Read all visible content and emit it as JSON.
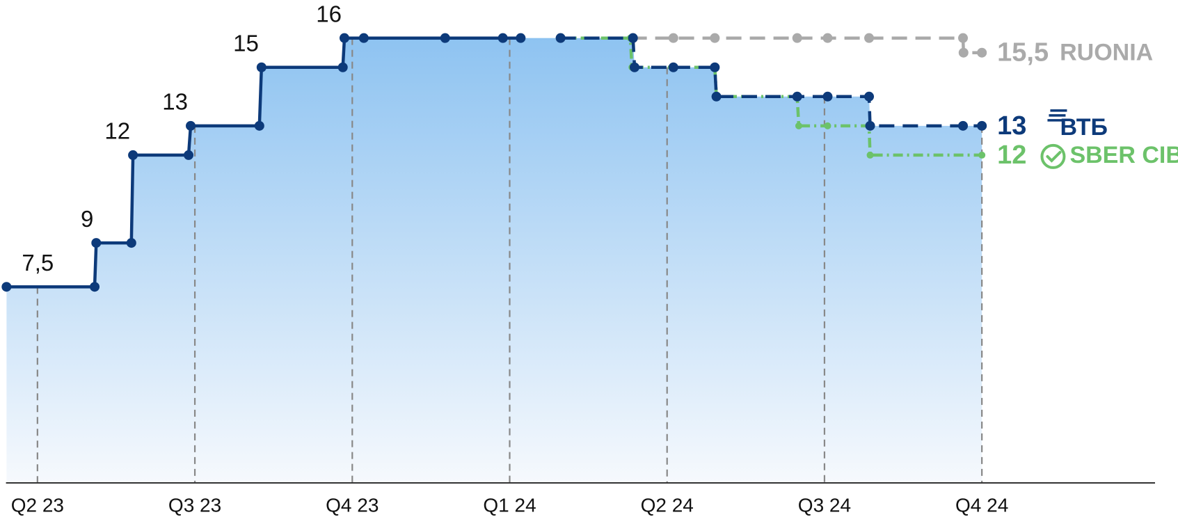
{
  "chart_data": {
    "type": "line",
    "xlim": [
      2.4,
      24.3
    ],
    "ylim": [
      0.8,
      17.3
    ],
    "xticks": [
      {
        "value": 3,
        "label": "Q2 23"
      },
      {
        "value": 6,
        "label": "Q3 23"
      },
      {
        "value": 9,
        "label": "Q4 23"
      },
      {
        "value": 12,
        "label": "Q1 24"
      },
      {
        "value": 15,
        "label": "Q2 24"
      },
      {
        "value": 18,
        "label": "Q3 24"
      },
      {
        "value": 21,
        "label": "Q4 24"
      }
    ],
    "grid": true,
    "series": [
      {
        "color": "#0d3a7a",
        "style": "solid",
        "x": [
          2.41,
          4.09,
          4.12,
          4.79,
          4.82,
          5.88,
          5.92,
          7.23,
          7.27,
          8.82,
          8.85,
          9.22,
          10.77,
          11.87,
          12.21
        ],
        "values": [
          7.5,
          7.5,
          9,
          9,
          12,
          12,
          13,
          13,
          15,
          15,
          16,
          16,
          16,
          16,
          16
        ],
        "value_labels": [
          "7,5",
          null,
          "9",
          null,
          "12",
          null,
          "13",
          null,
          "15",
          null,
          "16",
          null,
          null,
          null,
          null
        ]
      },
      {
        "name": "RUONIA",
        "color": "#aaaaaa",
        "style": "dashed",
        "x": [
          12.97,
          14.35,
          15.12,
          15.91,
          17.48,
          18.06,
          18.85,
          20.64,
          20.65,
          21.0
        ],
        "values": [
          16,
          16,
          16,
          16,
          16,
          16,
          16,
          16,
          15.5,
          15.5
        ],
        "value_labels": [
          null,
          null,
          null,
          null,
          null,
          null,
          null,
          null,
          null,
          "15,5"
        ]
      },
      {
        "name": "SBER CIB",
        "color": "#6cc26a",
        "style": "dotted",
        "x": [
          12.97,
          14.3,
          14.33,
          15.12,
          15.91,
          15.94,
          17.48,
          17.51,
          18.06,
          18.85,
          18.87,
          21.0
        ],
        "values": [
          16,
          16,
          15,
          15,
          15,
          14,
          14,
          13,
          13,
          13,
          12,
          12
        ],
        "value_labels": [
          null,
          null,
          null,
          null,
          null,
          null,
          null,
          null,
          null,
          null,
          null,
          "12"
        ]
      },
      {
        "name": "ВТБ",
        "color": "#0d3a7a",
        "style": "dashed",
        "x": [
          12.97,
          14.35,
          14.38,
          15.12,
          15.91,
          15.94,
          17.48,
          18.06,
          18.85,
          18.87,
          20.64,
          21.0
        ],
        "values": [
          16,
          16,
          15,
          15,
          15,
          14,
          14,
          14,
          14,
          13,
          13,
          13
        ],
        "value_labels": [
          null,
          null,
          null,
          null,
          null,
          null,
          null,
          null,
          null,
          null,
          null,
          "13"
        ]
      }
    ]
  }
}
